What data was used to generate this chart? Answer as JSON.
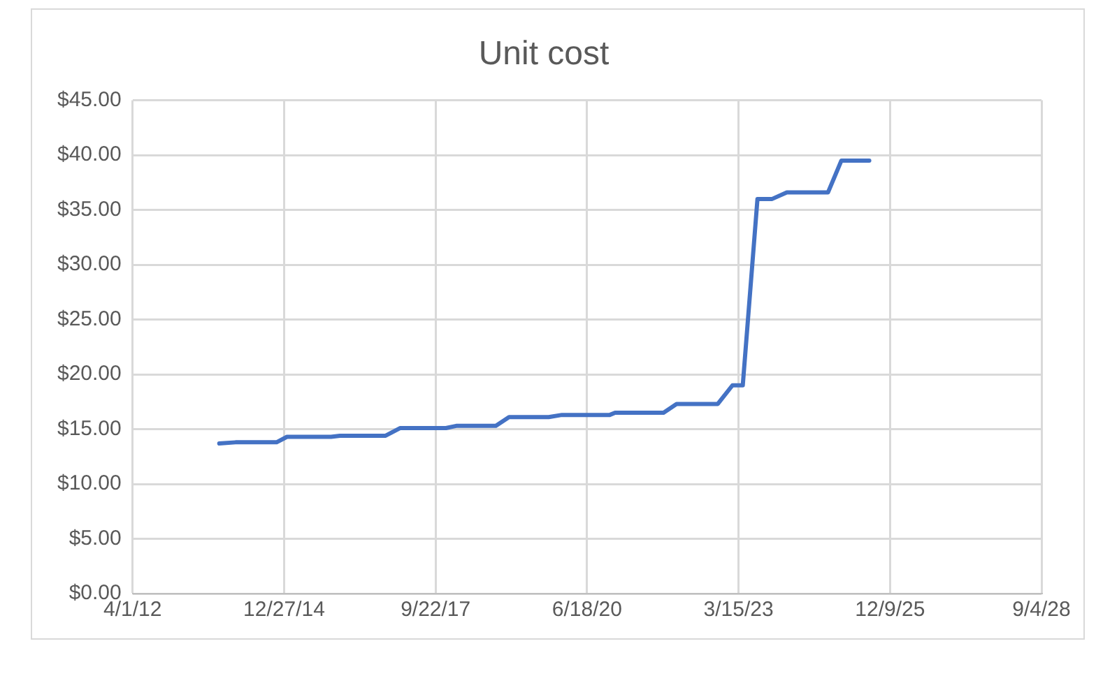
{
  "chart_data": {
    "type": "line",
    "title": "Unit cost",
    "x": [
      "2013-10-25",
      "2014-02-09",
      "2014-11-07",
      "2015-01-15",
      "2015-11-02",
      "2015-12-30",
      "2016-10-27",
      "2017-02-01",
      "2017-11-29",
      "2018-02-05",
      "2018-10-25",
      "2019-01-20",
      "2019-10-09",
      "2020-01-04",
      "2020-11-15",
      "2020-12-20",
      "2021-11-05",
      "2022-01-30",
      "2022-10-29",
      "2023-02-03",
      "2023-04-12",
      "2023-07-18",
      "2023-10-23",
      "2024-01-28",
      "2024-10-26",
      "2025-01-22",
      "2025-07-25"
    ],
    "series": [
      {
        "color": "#4472c4",
        "values": [
          13.7,
          13.8,
          13.8,
          14.3,
          14.3,
          14.4,
          14.4,
          15.1,
          15.1,
          15.3,
          15.3,
          16.1,
          16.1,
          16.3,
          16.3,
          16.5,
          16.5,
          17.3,
          17.3,
          19.0,
          19.0,
          36.0,
          36.0,
          36.6,
          36.6,
          39.5,
          39.5
        ]
      }
    ],
    "xlim": [
      "2012-04-01",
      "2028-09-04"
    ],
    "xticks": [
      {
        "value": "2012-04-01",
        "label": "4/1/12"
      },
      {
        "value": "2014-12-27",
        "label": "12/27/14"
      },
      {
        "value": "2017-09-22",
        "label": "9/22/17"
      },
      {
        "value": "2020-06-18",
        "label": "6/18/20"
      },
      {
        "value": "2023-03-15",
        "label": "3/15/23"
      },
      {
        "value": "2025-12-09",
        "label": "12/9/25"
      },
      {
        "value": "2028-09-04",
        "label": "9/4/28"
      }
    ],
    "ylim": [
      0,
      45
    ],
    "yticks": [
      {
        "value": 0,
        "label": "$0.00"
      },
      {
        "value": 5,
        "label": "$5.00"
      },
      {
        "value": 10,
        "label": "$10.00"
      },
      {
        "value": 15,
        "label": "$15.00"
      },
      {
        "value": 20,
        "label": "$20.00"
      },
      {
        "value": 25,
        "label": "$25.00"
      },
      {
        "value": 30,
        "label": "$30.00"
      },
      {
        "value": 35,
        "label": "$35.00"
      },
      {
        "value": 40,
        "label": "$40.00"
      },
      {
        "value": 45,
        "label": "$45.00"
      }
    ],
    "grid": true,
    "legend": false,
    "marker": "none",
    "line_style": "solid"
  }
}
